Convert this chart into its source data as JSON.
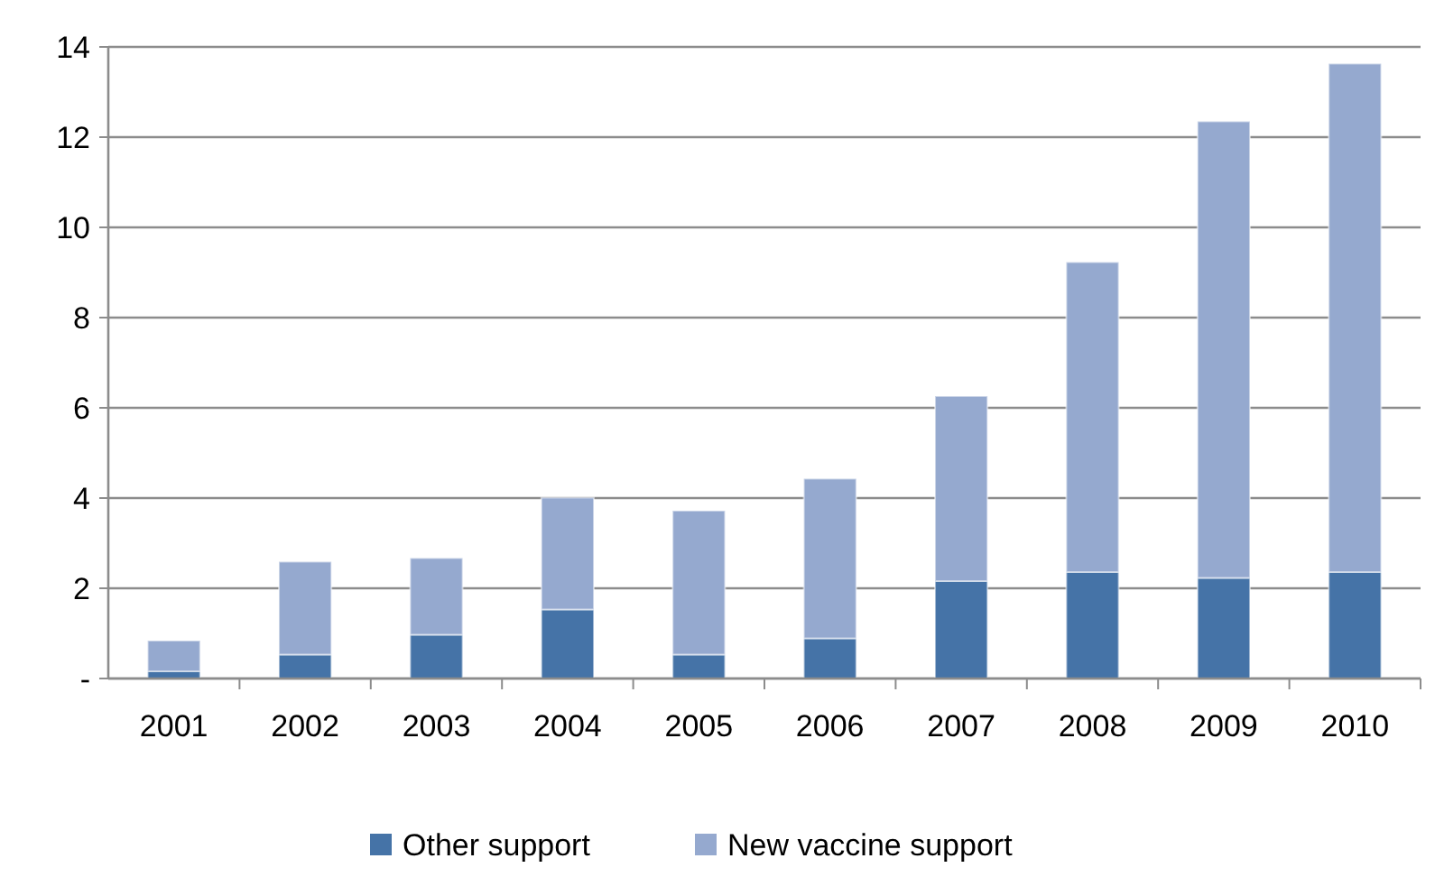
{
  "chart_data": {
    "type": "bar",
    "stacked": true,
    "categories": [
      "2001",
      "2002",
      "2003",
      "2004",
      "2005",
      "2006",
      "2007",
      "2008",
      "2009",
      "2010"
    ],
    "series": [
      {
        "name": "Other support",
        "color": "#4573a7",
        "values": [
          0.16,
          0.53,
          0.97,
          1.53,
          0.53,
          0.89,
          2.16,
          2.36,
          2.23,
          2.36
        ]
      },
      {
        "name": "New vaccine support",
        "color": "#95a9cf",
        "values": [
          0.68,
          2.06,
          1.7,
          2.48,
          3.19,
          3.54,
          4.1,
          6.87,
          10.12,
          11.27
        ]
      }
    ],
    "ylim": [
      0,
      14
    ],
    "yticks": [
      {
        "value": 0,
        "label": "-"
      },
      2,
      4,
      6,
      8,
      10,
      12,
      14
    ],
    "grid": "y",
    "legend": "bottom"
  }
}
